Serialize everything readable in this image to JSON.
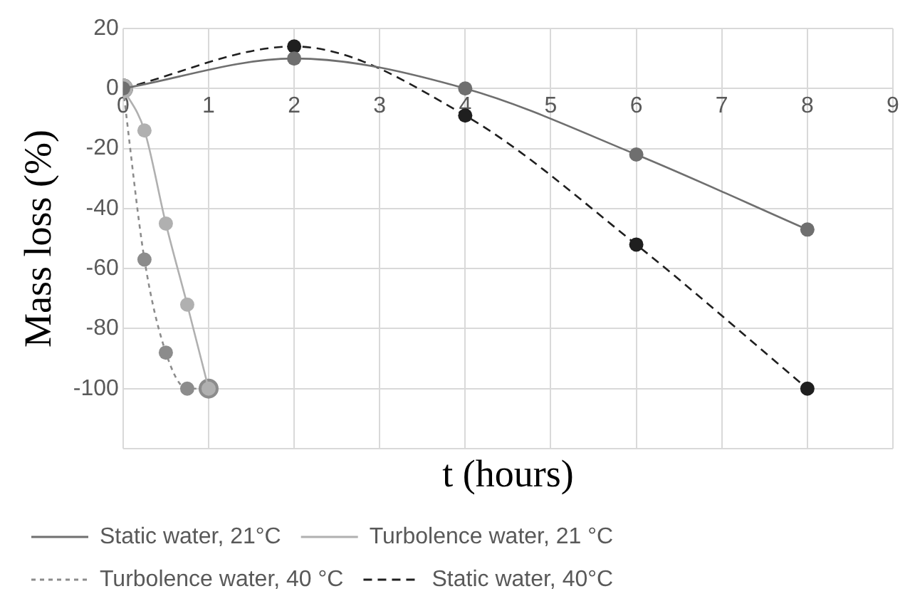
{
  "chart_data": {
    "type": "line",
    "xlabel": "t (hours)",
    "ylabel": "Mass loss (%)",
    "xlim": [
      0,
      9
    ],
    "xticks": [
      0,
      1,
      2,
      3,
      4,
      5,
      6,
      7,
      8,
      9
    ],
    "ylim": [
      -120,
      20
    ],
    "yticks": [
      {
        "value": -120,
        "label": null
      },
      -100,
      -80,
      -60,
      -40,
      -20,
      0,
      20
    ],
    "grid": true,
    "legend": "bottom",
    "marker": "circle",
    "series": [
      {
        "name": "Static water, 21°C",
        "color": "#6f6f6f",
        "line_style": "solid",
        "x": [
          0,
          2,
          4,
          6,
          8
        ],
        "values": [
          0,
          10,
          0,
          -22,
          -47
        ]
      },
      {
        "name": "Turbolence water, 21 °C",
        "color": "#b0b0b0",
        "line_style": "solid",
        "x": [
          0,
          0.25,
          0.5,
          0.75,
          1
        ],
        "values": [
          0,
          -14,
          -45,
          -72,
          -100
        ]
      },
      {
        "name": "Turbolence water, 40 °C",
        "color": "#8c8c8c",
        "line_style": "dotted",
        "x": [
          0,
          0.25,
          0.5,
          0.75,
          1
        ],
        "values": [
          0,
          -57,
          -88,
          -100,
          -100
        ]
      },
      {
        "name": "Static water, 40°C",
        "color": "#1f1f1f",
        "line_style": "dashed",
        "x": [
          0,
          2,
          4,
          6,
          8
        ],
        "values": [
          0,
          14,
          -9,
          -52,
          -100
        ]
      }
    ]
  }
}
